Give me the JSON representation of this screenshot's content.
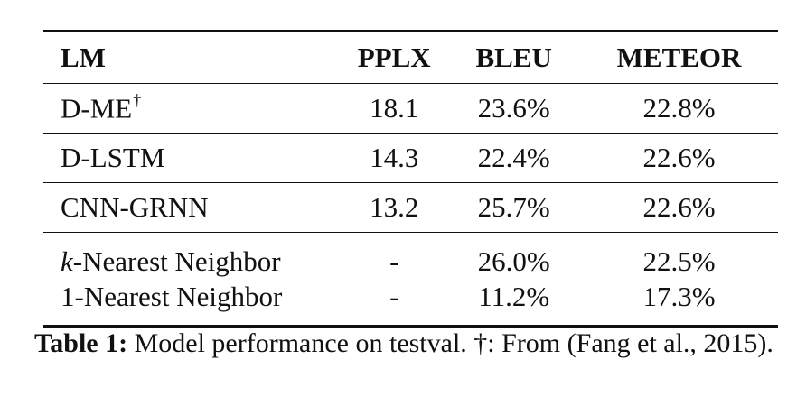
{
  "table": {
    "headers": {
      "lm": "LM",
      "pplx": "PPLX",
      "bleu": "BLEU",
      "meteor": "METEOR"
    },
    "rows": [
      {
        "lm": "D-ME",
        "lm_mark": "†",
        "pplx": "18.1",
        "bleu": "23.6%",
        "meteor": "22.8%"
      },
      {
        "lm": "D-LSTM",
        "pplx": "14.3",
        "bleu": "22.4%",
        "meteor": "22.6%"
      },
      {
        "lm": "CNN-GRNN",
        "pplx": "13.2",
        "bleu": "25.7%",
        "meteor": "22.6%"
      },
      {
        "lm_prefix": "k",
        "lm": "-Nearest Neighbor",
        "pplx": "-",
        "bleu": "26.0%",
        "meteor": "22.5%"
      },
      {
        "lm": "1-Nearest Neighbor",
        "pplx": "-",
        "bleu": "11.2%",
        "meteor": "17.3%"
      }
    ]
  },
  "caption": {
    "label": "Table 1:",
    "text": " Model performance on testval. †: From (Fang et al., 2015)."
  }
}
